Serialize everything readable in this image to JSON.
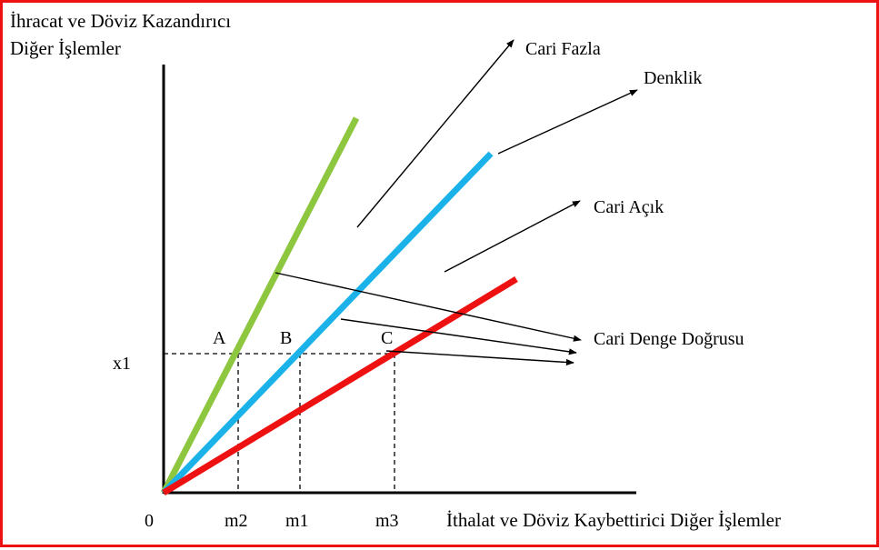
{
  "y_axis_label": {
    "line1": "İhracat ve Döviz Kazandırıcı",
    "line2": "Diğer İşlemler"
  },
  "x_axis_label": "İthalat ve Döviz Kaybettirici Diğer İşlemler",
  "origin_label": "0",
  "tick_labels": {
    "x1": "x1",
    "m2": "m2",
    "m1": "m1",
    "m3": "m3"
  },
  "point_labels": {
    "A": "A",
    "B": "B",
    "C": "C"
  },
  "annotations": {
    "surplus": "Cari Fazla",
    "balance": "Denklik",
    "deficit": "Cari Açık",
    "balance_line": "Cari Denge Doğrusu"
  },
  "colors": {
    "frame": "#ee1111",
    "green_line": "#8dc63f",
    "blue_line": "#1ab2e8",
    "red_line": "#ee1111",
    "ink": "#000000"
  }
}
